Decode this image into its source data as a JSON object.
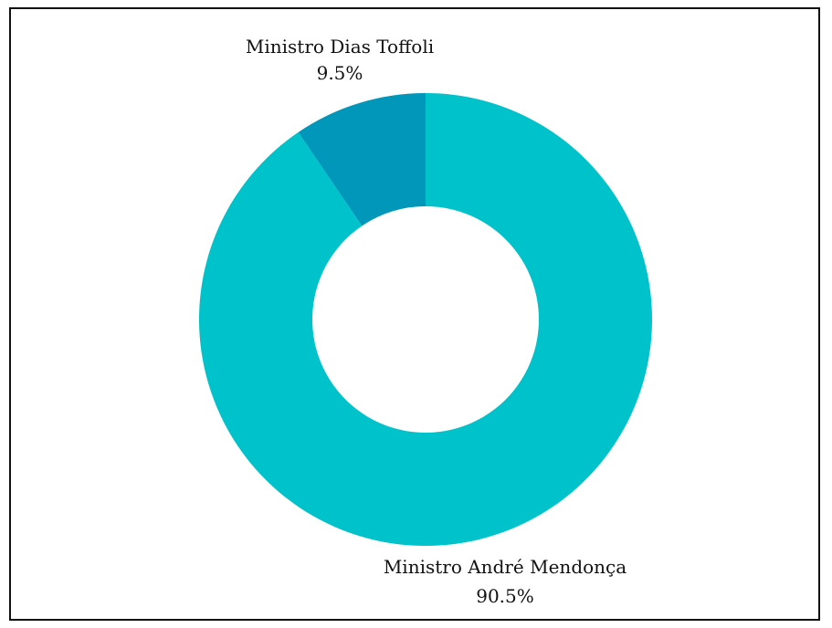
{
  "chart_data": {
    "type": "pie",
    "donut": true,
    "title": "",
    "start_angle_deg": 0,
    "direction": "clockwise",
    "slices": [
      {
        "name": "Ministro André Mendonça",
        "value": 90.5,
        "label": "90.5%",
        "color": "#00c2cb"
      },
      {
        "name": "Ministro Dias Toffoli",
        "value": 9.5,
        "label": "9.5%",
        "color": "#0097bb"
      }
    ],
    "legend": "none"
  }
}
